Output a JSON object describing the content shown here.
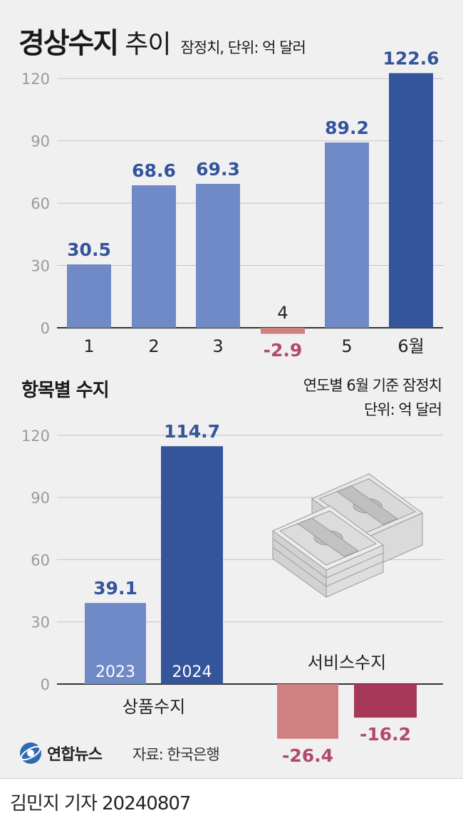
{
  "header": {
    "title_main": "경상수지",
    "title_sub": "추이",
    "note": "잠정치, 단위: 억 달러"
  },
  "section2": {
    "title": "항목별 수지",
    "note_line1": "연도별 6월 기준 잠정치",
    "note_line2": "단위: 억 달러"
  },
  "chart_data": [
    {
      "type": "bar",
      "title": "경상수지 추이",
      "categories": [
        "1",
        "2",
        "3",
        "4",
        "5",
        "6월"
      ],
      "values": [
        30.5,
        68.6,
        69.3,
        -2.9,
        89.2,
        122.6
      ],
      "value_labels": [
        "30.5",
        "68.6",
        "69.3",
        "-2.9",
        "89.2",
        "122.6"
      ],
      "yticks": [
        "0",
        "30",
        "60",
        "90",
        "120"
      ],
      "ylim": [
        -3,
        122.6
      ],
      "grid": true,
      "colors": {
        "normal": "#6f8ac6",
        "highlight": "#34549b",
        "negative": "#d08080",
        "label": "#34549b",
        "neg_label": "#b24a68"
      }
    },
    {
      "type": "bar",
      "title": "항목별 수지",
      "groups": [
        "상품수지",
        "서비스수지"
      ],
      "series": [
        {
          "name": "2023",
          "values": [
            39.1,
            -26.4
          ]
        },
        {
          "name": "2024",
          "values": [
            114.7,
            -16.2
          ]
        }
      ],
      "value_labels": [
        [
          "39.1",
          "-26.4"
        ],
        [
          "114.7",
          "-16.2"
        ]
      ],
      "yticks": [
        "0",
        "30",
        "60",
        "90",
        "120"
      ],
      "ylim": [
        -30,
        122.6
      ],
      "grid": true,
      "colors": {
        "s2023_pos": "#6f8ac6",
        "s2024_pos": "#34549b",
        "s2023_neg": "#d08080",
        "s2024_neg": "#a8385a"
      }
    }
  ],
  "footer": {
    "logo_text": "연합뉴스",
    "source": "자료: 한국은행",
    "credit": "김민지 기자  20240807"
  }
}
